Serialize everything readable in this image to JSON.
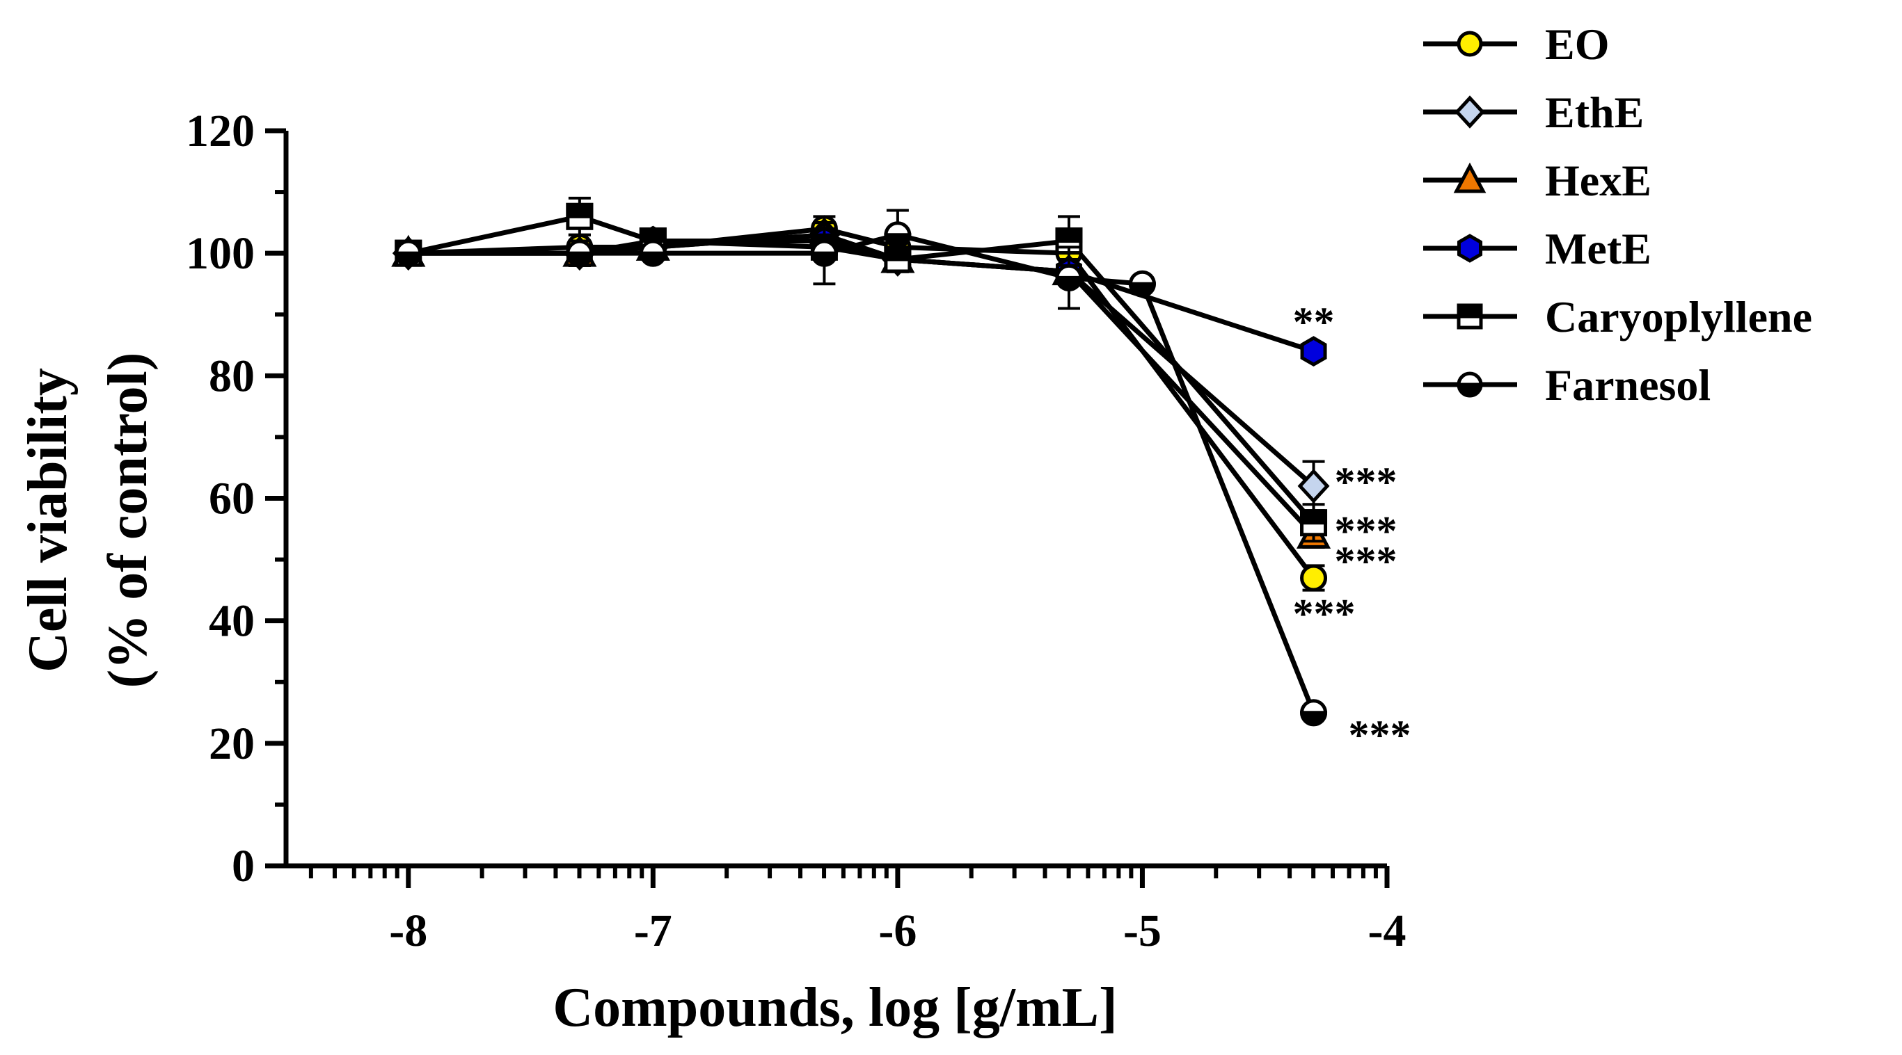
{
  "chart_data": {
    "type": "line",
    "title": "",
    "xlabel": "Compounds, log [g/mL]",
    "ylabel_line1": "Cell viability",
    "ylabel_line2": "(% of control)",
    "xlim": [
      -8.5,
      -4
    ],
    "ylim": [
      0,
      120
    ],
    "x_ticks": [
      -8,
      -7,
      -6,
      -5,
      -4
    ],
    "x_tick_labels": [
      "-8",
      "-7",
      "-6",
      "-5",
      "-4"
    ],
    "y_ticks": [
      0,
      20,
      40,
      60,
      80,
      100,
      120
    ],
    "y_tick_labels": [
      "0",
      "20",
      "40",
      "60",
      "80",
      "100",
      "120"
    ],
    "x_scale": "log10 concentration",
    "grid": false,
    "legend_position": "top-right",
    "series": [
      {
        "name": "EO",
        "marker": "circle",
        "fill": "#ffee00",
        "x": [
          -8,
          -7.3,
          -7,
          -6.3,
          -6,
          -5.3,
          -4.3
        ],
        "values": [
          100,
          101,
          101,
          104,
          101,
          100,
          47
        ],
        "errors": [
          1,
          2,
          1,
          2,
          3,
          2,
          2
        ]
      },
      {
        "name": "EthE",
        "marker": "diamond",
        "fill": "#c5d5ee",
        "x": [
          -8,
          -7.3,
          -7,
          -6.3,
          -6,
          -5.3,
          -4.3
        ],
        "values": [
          100,
          100,
          101,
          103,
          99,
          97,
          62
        ],
        "errors": [
          1,
          2,
          1,
          2,
          2,
          2,
          4
        ]
      },
      {
        "name": "HexE",
        "marker": "triangle",
        "fill": "#f07800",
        "x": [
          -8,
          -7.3,
          -7,
          -6.3,
          -6,
          -5.3,
          -4.3
        ],
        "values": [
          100,
          100,
          101,
          103,
          99,
          97,
          54
        ],
        "errors": [
          1,
          2,
          1,
          2,
          2,
          2,
          2
        ]
      },
      {
        "name": "MetE",
        "marker": "hexagon",
        "fill": "#0000dd",
        "x": [
          -8,
          -7.3,
          -7,
          -6.3,
          -6,
          -5.3,
          -4.3
        ],
        "values": [
          100,
          100,
          102,
          102,
          99,
          97,
          84
        ],
        "errors": [
          1,
          2,
          1,
          2,
          2,
          2,
          1
        ]
      },
      {
        "name": "Caryoplyllene",
        "marker": "square-half",
        "fill": "#000000",
        "x": [
          -8,
          -7.3,
          -7,
          -6.3,
          -6,
          -5.3,
          -4.3
        ],
        "values": [
          100,
          106,
          102,
          101,
          99,
          102,
          56
        ],
        "errors": [
          1,
          3,
          1,
          2,
          2,
          4,
          3
        ]
      },
      {
        "name": "Farnesol",
        "marker": "circle-half",
        "fill": "#000000",
        "x": [
          -8,
          -7.3,
          -7,
          -6.3,
          -6,
          -5.3,
          -5,
          -4.3
        ],
        "values": [
          100,
          100,
          100,
          100,
          103,
          96,
          95,
          25
        ],
        "errors": [
          1,
          2,
          1,
          5,
          4,
          5,
          1,
          1
        ]
      }
    ],
    "annotations": [
      {
        "text": "**",
        "x": -4.3,
        "y": 84,
        "series": "MetE"
      },
      {
        "text": "***",
        "x": -4.3,
        "y": 62,
        "series": "EthE"
      },
      {
        "text": "***",
        "x": -4.3,
        "y": 54,
        "series": "HexE"
      },
      {
        "text": "***",
        "x": -4.3,
        "y": 47,
        "series": "EO"
      },
      {
        "text": "***",
        "x": -4.3,
        "y": 40,
        "series": "Caryoplyllene"
      },
      {
        "text": "***",
        "x": -4.3,
        "y": 25,
        "series": "Farnesol"
      }
    ]
  }
}
